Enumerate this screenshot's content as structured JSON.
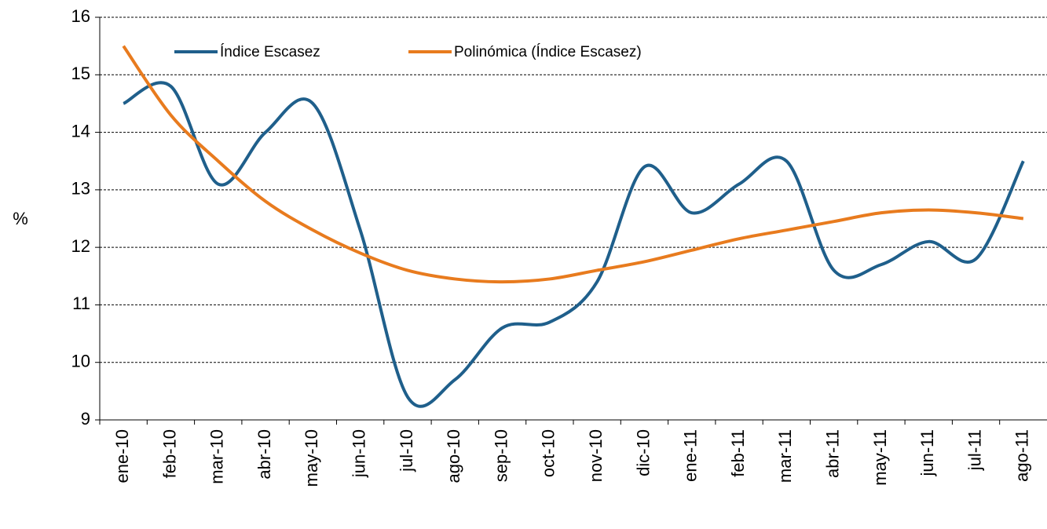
{
  "chart_data": {
    "type": "line",
    "y_label": "%",
    "categories": [
      "ene-10",
      "feb-10",
      "mar-10",
      "abr-10",
      "may-10",
      "jun-10",
      "jul-10",
      "ago-10",
      "sep-10",
      "oct-10",
      "nov-10",
      "dic-10",
      "ene-11",
      "feb-11",
      "mar-11",
      "abr-11",
      "may-11",
      "jun-11",
      "jul-11",
      "ago-11"
    ],
    "series": [
      {
        "name": "Índice Escasez",
        "color": "#1f5f8b",
        "values": [
          14.5,
          14.8,
          13.1,
          14.0,
          14.5,
          12.3,
          9.4,
          9.7,
          10.6,
          10.7,
          11.4,
          13.4,
          12.6,
          13.1,
          13.5,
          11.6,
          11.7,
          12.1,
          11.8,
          13.5
        ]
      },
      {
        "name": "Polinómica (Índice Escasez)",
        "color": "#e87b1e",
        "values": [
          15.5,
          14.3,
          13.5,
          12.8,
          12.3,
          11.9,
          11.6,
          11.45,
          11.4,
          11.45,
          11.6,
          11.75,
          11.95,
          12.15,
          12.3,
          12.45,
          12.6,
          12.65,
          12.6,
          12.5
        ]
      }
    ],
    "ylim": [
      9,
      16
    ],
    "yticks": [
      9,
      10,
      11,
      12,
      13,
      14,
      15,
      16
    ],
    "grid": true,
    "legend": "top"
  }
}
